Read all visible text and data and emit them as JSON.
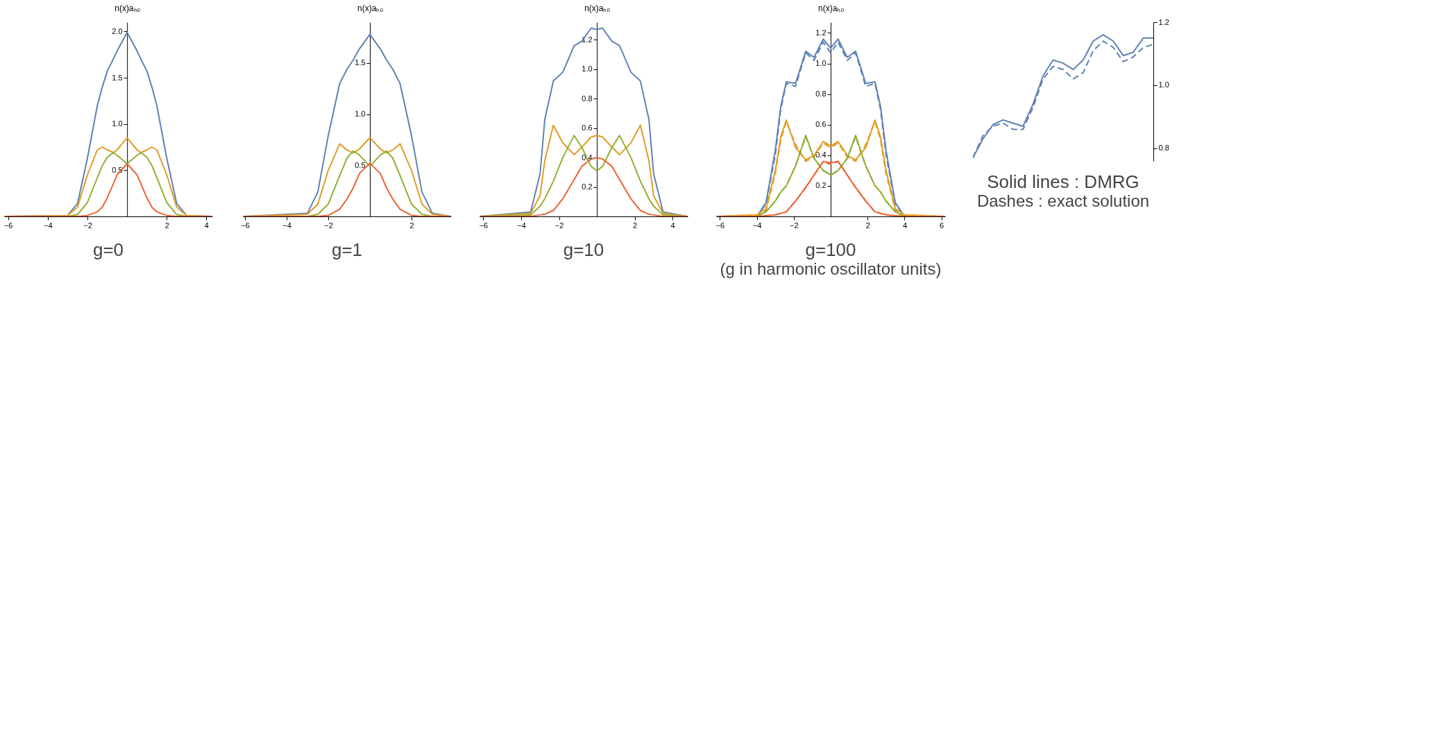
{
  "chart_data": [
    {
      "type": "line",
      "title": "g=0",
      "ylabel": "n(x)aₕₒ",
      "xlim": [
        -6.2,
        4.3
      ],
      "ylim": [
        0,
        2.1
      ],
      "xticks": [
        -6,
        -4,
        -2,
        2,
        4
      ],
      "yticks": [
        {
          "value": 0.5,
          "label": "0.5"
        },
        {
          "value": 1,
          "label": "1.0"
        },
        {
          "value": 1.5,
          "label": "1.5"
        },
        {
          "value": 2,
          "label": "2.0"
        }
      ],
      "grid": false,
      "x": [
        -6.2,
        -3,
        -2.5,
        -2,
        -1.5,
        -1.25,
        -1,
        -0.7,
        -0.5,
        0,
        0.5,
        0.7,
        1,
        1.25,
        1.5,
        2,
        2.5,
        3,
        4.3
      ],
      "series": [
        {
          "color": "#5e81b5",
          "line_style": "solid",
          "values": [
            0,
            0.01,
            0.14,
            0.63,
            1.2,
            1.4,
            1.57,
            1.7,
            1.79,
            1.99,
            1.79,
            1.7,
            1.57,
            1.4,
            1.2,
            0.63,
            0.14,
            0.01,
            0
          ]
        },
        {
          "color": "#e19c24",
          "line_style": "solid",
          "values": [
            0,
            0.01,
            0.1,
            0.45,
            0.72,
            0.75,
            0.72,
            0.69,
            0.72,
            0.85,
            0.72,
            0.69,
            0.72,
            0.75,
            0.72,
            0.45,
            0.1,
            0.01,
            0
          ]
        },
        {
          "color": "#8fb032",
          "line_style": "solid",
          "values": [
            0,
            0,
            0.02,
            0.15,
            0.42,
            0.55,
            0.64,
            0.69,
            0.66,
            0.57,
            0.66,
            0.69,
            0.64,
            0.55,
            0.42,
            0.15,
            0.02,
            0,
            0
          ]
        },
        {
          "color": "#eb6235",
          "line_style": "solid",
          "values": [
            0,
            0,
            0,
            0.01,
            0.05,
            0.1,
            0.2,
            0.35,
            0.45,
            0.57,
            0.45,
            0.35,
            0.2,
            0.1,
            0.05,
            0.01,
            0,
            0,
            0
          ]
        }
      ]
    },
    {
      "type": "line",
      "title": "g=1",
      "ylabel": "n(x)aₕₒ",
      "xlim": [
        -6.1,
        3.9
      ],
      "ylim": [
        0,
        1.9
      ],
      "xticks": [
        -6,
        -4,
        -2,
        2
      ],
      "yticks": [
        {
          "value": 0.5,
          "label": "0.5"
        },
        {
          "value": 1,
          "label": "1.0"
        },
        {
          "value": 1.5,
          "label": "1.5"
        }
      ],
      "grid": false,
      "x": [
        -6.1,
        -3,
        -2.5,
        -2,
        -1.45,
        -1.1,
        -0.8,
        -0.5,
        0,
        0.5,
        0.8,
        1.1,
        1.45,
        2,
        2.5,
        3,
        3.9
      ],
      "series": [
        {
          "color": "#5e81b5",
          "line_style": "solid",
          "values": [
            0,
            0.03,
            0.24,
            0.79,
            1.3,
            1.44,
            1.53,
            1.64,
            1.78,
            1.64,
            1.53,
            1.44,
            1.3,
            0.79,
            0.24,
            0.03,
            0
          ]
        },
        {
          "color": "#e19c24",
          "line_style": "solid",
          "values": [
            0,
            0.02,
            0.12,
            0.45,
            0.71,
            0.65,
            0.62,
            0.66,
            0.77,
            0.66,
            0.62,
            0.65,
            0.71,
            0.45,
            0.12,
            0.02,
            0
          ]
        },
        {
          "color": "#8fb032",
          "line_style": "solid",
          "values": [
            0,
            0,
            0.02,
            0.12,
            0.4,
            0.57,
            0.64,
            0.6,
            0.49,
            0.6,
            0.64,
            0.57,
            0.4,
            0.12,
            0.02,
            0,
            0
          ]
        },
        {
          "color": "#eb6235",
          "line_style": "solid",
          "values": [
            0,
            0,
            0,
            0.01,
            0.07,
            0.17,
            0.28,
            0.42,
            0.52,
            0.42,
            0.28,
            0.17,
            0.07,
            0.01,
            0,
            0,
            0
          ]
        }
      ]
    },
    {
      "type": "line",
      "title": "g=10",
      "ylabel": "n(x)aₕₒ",
      "xlim": [
        -6.2,
        4.8
      ],
      "ylim": [
        0,
        1.32
      ],
      "xticks": [
        -6,
        -4,
        -2,
        2,
        4
      ],
      "yticks": [
        {
          "value": 0.2,
          "label": "0.2"
        },
        {
          "value": 0.4,
          "label": "0.4"
        },
        {
          "value": 0.6,
          "label": "0.6"
        },
        {
          "value": 0.8,
          "label": "0.8"
        },
        {
          "value": 1,
          "label": "1.0"
        },
        {
          "value": 1.2,
          "label": "1.2"
        }
      ],
      "grid": false,
      "x": [
        -6.2,
        -3.5,
        -3,
        -2.75,
        -2.3,
        -1.8,
        -1.2,
        -0.8,
        -0.3,
        0,
        0.3,
        0.8,
        1.2,
        1.8,
        2.3,
        2.75,
        3,
        3.5,
        4.8
      ],
      "series": [
        {
          "color": "#5e81b5",
          "line_style": "solid",
          "values": [
            0,
            0.03,
            0.29,
            0.66,
            0.92,
            0.98,
            1.16,
            1.19,
            1.28,
            1.27,
            1.28,
            1.19,
            1.16,
            0.98,
            0.92,
            0.66,
            0.29,
            0.03,
            0
          ]
        },
        {
          "color": "#e19c24",
          "line_style": "solid",
          "values": [
            0,
            0.02,
            0.14,
            0.38,
            0.62,
            0.5,
            0.42,
            0.47,
            0.54,
            0.55,
            0.54,
            0.47,
            0.42,
            0.5,
            0.62,
            0.38,
            0.14,
            0.02,
            0
          ]
        },
        {
          "color": "#8fb032",
          "line_style": "solid",
          "values": [
            0,
            0.01,
            0.07,
            0.12,
            0.24,
            0.4,
            0.55,
            0.47,
            0.34,
            0.31,
            0.34,
            0.47,
            0.55,
            0.4,
            0.24,
            0.12,
            0.07,
            0.01,
            0
          ]
        },
        {
          "color": "#eb6235",
          "line_style": "solid",
          "values": [
            0,
            0,
            0.01,
            0.015,
            0.04,
            0.12,
            0.25,
            0.34,
            0.39,
            0.4,
            0.39,
            0.34,
            0.25,
            0.12,
            0.04,
            0.015,
            0.01,
            0,
            0
          ]
        }
      ]
    },
    {
      "type": "line",
      "title": "g=100",
      "ylabel": "n(x)aₕₒ",
      "annotations": [
        "(g in harmonic oscillator units)"
      ],
      "xlim": [
        -6.2,
        6.2
      ],
      "ylim": [
        0,
        1.27
      ],
      "xticks": [
        -6,
        -4,
        -2,
        2,
        4,
        6
      ],
      "yticks": [
        {
          "value": 0.2,
          "label": "0.2"
        },
        {
          "value": 0.4,
          "label": "0.4"
        },
        {
          "value": 0.6,
          "label": "0.6"
        },
        {
          "value": 0.8,
          "label": "0.8"
        },
        {
          "value": 1,
          "label": "1.0"
        },
        {
          "value": 1.2,
          "label": "1.2"
        }
      ],
      "grid": false,
      "x": [
        -6.2,
        -4,
        -3.5,
        -3,
        -2.7,
        -2.4,
        -1.9,
        -1.35,
        -0.9,
        -0.4,
        0,
        0.4,
        0.9,
        1.35,
        1.9,
        2.4,
        2.7,
        3,
        3.5,
        4,
        6.2
      ],
      "series": [
        {
          "color": "#5e81b5",
          "line_style": "solid",
          "values": [
            0,
            0,
            0.09,
            0.43,
            0.72,
            0.88,
            0.87,
            1.08,
            1.04,
            1.16,
            1.1,
            1.16,
            1.04,
            1.08,
            0.87,
            0.88,
            0.72,
            0.43,
            0.09,
            0,
            0
          ]
        },
        {
          "color": "#5e81b5",
          "line_style": "dashed",
          "values": [
            0,
            0,
            0.08,
            0.4,
            0.7,
            0.87,
            0.85,
            1.07,
            1.02,
            1.14,
            1.07,
            1.14,
            1.02,
            1.07,
            0.85,
            0.87,
            0.7,
            0.4,
            0.08,
            0,
            0
          ]
        },
        {
          "color": "#e19c24",
          "line_style": "solid",
          "values": [
            0,
            0.01,
            0.05,
            0.3,
            0.52,
            0.63,
            0.45,
            0.37,
            0.4,
            0.49,
            0.46,
            0.49,
            0.4,
            0.37,
            0.45,
            0.63,
            0.52,
            0.3,
            0.05,
            0.01,
            0
          ]
        },
        {
          "color": "#e19c24",
          "line_style": "dashed",
          "values": [
            0,
            0.01,
            0.04,
            0.28,
            0.5,
            0.62,
            0.47,
            0.36,
            0.39,
            0.48,
            0.45,
            0.48,
            0.39,
            0.36,
            0.47,
            0.62,
            0.5,
            0.28,
            0.04,
            0.01,
            0
          ]
        },
        {
          "color": "#8fb032",
          "line_style": "solid",
          "values": [
            0,
            0,
            0.03,
            0.1,
            0.16,
            0.2,
            0.33,
            0.53,
            0.38,
            0.3,
            0.27,
            0.3,
            0.38,
            0.53,
            0.33,
            0.2,
            0.16,
            0.1,
            0.03,
            0,
            0
          ]
        },
        {
          "color": "#8fb032",
          "line_style": "dashed",
          "values": [
            0,
            0,
            0.03,
            0.1,
            0.16,
            0.2,
            0.33,
            0.52,
            0.38,
            0.3,
            0.27,
            0.3,
            0.38,
            0.52,
            0.33,
            0.2,
            0.16,
            0.1,
            0.03,
            0,
            0
          ]
        },
        {
          "color": "#eb6235",
          "line_style": "solid",
          "values": [
            0,
            0,
            0.005,
            0.01,
            0.02,
            0.03,
            0.1,
            0.19,
            0.27,
            0.36,
            0.35,
            0.36,
            0.27,
            0.19,
            0.1,
            0.03,
            0.02,
            0.01,
            0.005,
            0,
            0
          ]
        },
        {
          "color": "#eb6235",
          "line_style": "dashed",
          "values": [
            0,
            0,
            0.005,
            0.01,
            0.02,
            0.03,
            0.1,
            0.19,
            0.27,
            0.36,
            0.34,
            0.36,
            0.27,
            0.19,
            0.1,
            0.03,
            0.02,
            0.01,
            0.005,
            0,
            0
          ]
        }
      ]
    },
    {
      "type": "line",
      "annotations": [
        "Solid lines : DMRG",
        "Dashes : exact solution"
      ],
      "categories": [
        null,
        null,
        null,
        null,
        null,
        null,
        null,
        null,
        null,
        null,
        null,
        null,
        null,
        null,
        null,
        null,
        null,
        null,
        null
      ],
      "ylim": [
        0.76,
        1.2
      ],
      "yticks": [
        {
          "value": 0.8,
          "label": "0.8"
        },
        {
          "value": 1,
          "label": "1.0"
        },
        {
          "value": 1.2,
          "label": "1.2"
        }
      ],
      "tick_labels": "y",
      "grid": false,
      "series": [
        {
          "color": "#5e81b5",
          "line_style": "solid",
          "values": [
            0.77,
            0.83,
            0.875,
            0.89,
            0.88,
            0.87,
            0.94,
            1.03,
            1.08,
            1.07,
            1.05,
            1.08,
            1.14,
            1.16,
            1.14,
            1.094,
            1.105,
            1.15,
            1.15
          ]
        },
        {
          "color": "#5e81b5",
          "line_style": "dashed",
          "values": [
            0.77,
            0.84,
            0.87,
            0.88,
            0.86,
            0.86,
            0.93,
            1.02,
            1.06,
            1.05,
            1.02,
            1.04,
            1.11,
            1.14,
            1.12,
            1.075,
            1.09,
            1.12,
            1.13
          ]
        }
      ]
    }
  ]
}
